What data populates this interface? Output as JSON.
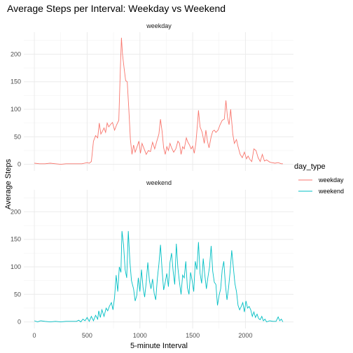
{
  "chart_data": {
    "type": "line",
    "title": "Average Steps per Interval: Weekday vs Weekend",
    "xlabel": "5-minute Interval",
    "ylabel": "Average Steps",
    "xlim": [
      -100,
      2455
    ],
    "ylim": [
      -12,
      240
    ],
    "x_ticks": [
      0,
      500,
      1000,
      1500,
      2000
    ],
    "y_ticks": [
      0,
      50,
      100,
      150,
      200
    ],
    "grid": true,
    "legend": {
      "title": "day_type",
      "placement": "right"
    },
    "panels": [
      "weekday",
      "weekend"
    ],
    "series": [
      {
        "name": "weekday",
        "panel": "weekday",
        "color": "#f8766d",
        "points": [
          [
            0,
            2
          ],
          [
            50,
            1
          ],
          [
            100,
            1
          ],
          [
            150,
            2
          ],
          [
            200,
            1
          ],
          [
            250,
            0
          ],
          [
            300,
            1
          ],
          [
            350,
            1
          ],
          [
            400,
            1
          ],
          [
            450,
            1
          ],
          [
            500,
            3
          ],
          [
            520,
            2
          ],
          [
            540,
            5
          ],
          [
            560,
            42
          ],
          [
            580,
            52
          ],
          [
            600,
            48
          ],
          [
            615,
            75
          ],
          [
            630,
            55
          ],
          [
            645,
            60
          ],
          [
            660,
            66
          ],
          [
            675,
            58
          ],
          [
            690,
            75
          ],
          [
            705,
            68
          ],
          [
            720,
            72
          ],
          [
            740,
            76
          ],
          [
            760,
            62
          ],
          [
            780,
            72
          ],
          [
            800,
            80
          ],
          [
            815,
            175
          ],
          [
            825,
            230
          ],
          [
            835,
            200
          ],
          [
            850,
            175
          ],
          [
            865,
            152
          ],
          [
            880,
            150
          ],
          [
            895,
            100
          ],
          [
            910,
            45
          ],
          [
            925,
            18
          ],
          [
            940,
            35
          ],
          [
            955,
            22
          ],
          [
            970,
            30
          ],
          [
            990,
            42
          ],
          [
            1005,
            20
          ],
          [
            1020,
            38
          ],
          [
            1040,
            28
          ],
          [
            1060,
            18
          ],
          [
            1080,
            25
          ],
          [
            1100,
            23
          ],
          [
            1120,
            40
          ],
          [
            1140,
            28
          ],
          [
            1160,
            42
          ],
          [
            1180,
            55
          ],
          [
            1195,
            82
          ],
          [
            1210,
            60
          ],
          [
            1225,
            30
          ],
          [
            1240,
            18
          ],
          [
            1255,
            32
          ],
          [
            1270,
            25
          ],
          [
            1285,
            38
          ],
          [
            1300,
            30
          ],
          [
            1320,
            22
          ],
          [
            1340,
            28
          ],
          [
            1360,
            42
          ],
          [
            1375,
            38
          ],
          [
            1390,
            18
          ],
          [
            1405,
            32
          ],
          [
            1420,
            28
          ],
          [
            1440,
            48
          ],
          [
            1455,
            40
          ],
          [
            1470,
            35
          ],
          [
            1485,
            28
          ],
          [
            1500,
            33
          ],
          [
            1515,
            20
          ],
          [
            1530,
            38
          ],
          [
            1545,
            72
          ],
          [
            1555,
            98
          ],
          [
            1570,
            68
          ],
          [
            1590,
            58
          ],
          [
            1610,
            38
          ],
          [
            1625,
            62
          ],
          [
            1640,
            42
          ],
          [
            1655,
            30
          ],
          [
            1675,
            50
          ],
          [
            1690,
            60
          ],
          [
            1705,
            62
          ],
          [
            1720,
            58
          ],
          [
            1740,
            62
          ],
          [
            1760,
            72
          ],
          [
            1780,
            80
          ],
          [
            1800,
            82
          ],
          [
            1815,
            116
          ],
          [
            1830,
            85
          ],
          [
            1845,
            72
          ],
          [
            1860,
            100
          ],
          [
            1880,
            55
          ],
          [
            1895,
            38
          ],
          [
            1915,
            45
          ],
          [
            1930,
            32
          ],
          [
            1950,
            18
          ],
          [
            1970,
            12
          ],
          [
            1990,
            22
          ],
          [
            2010,
            10
          ],
          [
            2025,
            15
          ],
          [
            2045,
            8
          ],
          [
            2060,
            5
          ],
          [
            2080,
            28
          ],
          [
            2100,
            25
          ],
          [
            2120,
            12
          ],
          [
            2140,
            5
          ],
          [
            2160,
            18
          ],
          [
            2180,
            6
          ],
          [
            2200,
            8
          ],
          [
            2230,
            4
          ],
          [
            2250,
            3
          ],
          [
            2280,
            2
          ],
          [
            2310,
            3
          ],
          [
            2340,
            1
          ],
          [
            2355,
            1
          ]
        ]
      },
      {
        "name": "weekend",
        "panel": "weekend",
        "color": "#00bfc4",
        "points": [
          [
            0,
            2
          ],
          [
            30,
            0
          ],
          [
            60,
            2
          ],
          [
            100,
            1
          ],
          [
            150,
            0
          ],
          [
            200,
            1
          ],
          [
            250,
            0
          ],
          [
            300,
            1
          ],
          [
            350,
            1
          ],
          [
            400,
            1
          ],
          [
            420,
            3
          ],
          [
            440,
            0
          ],
          [
            460,
            5
          ],
          [
            480,
            2
          ],
          [
            500,
            8
          ],
          [
            520,
            1
          ],
          [
            540,
            10
          ],
          [
            560,
            2
          ],
          [
            580,
            12
          ],
          [
            600,
            5
          ],
          [
            610,
            20
          ],
          [
            625,
            8
          ],
          [
            640,
            22
          ],
          [
            660,
            10
          ],
          [
            680,
            25
          ],
          [
            695,
            20
          ],
          [
            710,
            28
          ],
          [
            730,
            35
          ],
          [
            745,
            22
          ],
          [
            760,
            45
          ],
          [
            775,
            85
          ],
          [
            790,
            55
          ],
          [
            805,
            100
          ],
          [
            820,
            90
          ],
          [
            830,
            165
          ],
          [
            845,
            140
          ],
          [
            860,
            95
          ],
          [
            875,
            80
          ],
          [
            890,
            165
          ],
          [
            905,
            110
          ],
          [
            920,
            75
          ],
          [
            940,
            60
          ],
          [
            955,
            38
          ],
          [
            970,
            48
          ],
          [
            985,
            80
          ],
          [
            1000,
            55
          ],
          [
            1015,
            95
          ],
          [
            1030,
            62
          ],
          [
            1045,
            45
          ],
          [
            1060,
            72
          ],
          [
            1075,
            108
          ],
          [
            1090,
            75
          ],
          [
            1105,
            60
          ],
          [
            1120,
            78
          ],
          [
            1135,
            52
          ],
          [
            1150,
            40
          ],
          [
            1165,
            78
          ],
          [
            1180,
            105
          ],
          [
            1195,
            140
          ],
          [
            1210,
            95
          ],
          [
            1225,
            58
          ],
          [
            1240,
            72
          ],
          [
            1255,
            88
          ],
          [
            1270,
            64
          ],
          [
            1285,
            108
          ],
          [
            1300,
            125
          ],
          [
            1315,
            92
          ],
          [
            1330,
            68
          ],
          [
            1345,
            142
          ],
          [
            1360,
            98
          ],
          [
            1375,
            72
          ],
          [
            1390,
            50
          ],
          [
            1405,
            85
          ],
          [
            1420,
            80
          ],
          [
            1435,
            110
          ],
          [
            1450,
            62
          ],
          [
            1465,
            50
          ],
          [
            1480,
            90
          ],
          [
            1495,
            75
          ],
          [
            1510,
            55
          ],
          [
            1525,
            110
          ],
          [
            1540,
            95
          ],
          [
            1555,
            145
          ],
          [
            1570,
            88
          ],
          [
            1585,
            70
          ],
          [
            1600,
            115
          ],
          [
            1615,
            85
          ],
          [
            1630,
            60
          ],
          [
            1645,
            82
          ],
          [
            1660,
            100
          ],
          [
            1675,
            138
          ],
          [
            1690,
            92
          ],
          [
            1705,
            72
          ],
          [
            1720,
            68
          ],
          [
            1735,
            30
          ],
          [
            1750,
            48
          ],
          [
            1765,
            60
          ],
          [
            1780,
            95
          ],
          [
            1795,
            110
          ],
          [
            1810,
            68
          ],
          [
            1825,
            40
          ],
          [
            1840,
            62
          ],
          [
            1855,
            92
          ],
          [
            1870,
            130
          ],
          [
            1885,
            100
          ],
          [
            1900,
            70
          ],
          [
            1915,
            55
          ],
          [
            1930,
            30
          ],
          [
            1945,
            22
          ],
          [
            1960,
            28
          ],
          [
            1975,
            35
          ],
          [
            1990,
            18
          ],
          [
            2005,
            38
          ],
          [
            2020,
            25
          ],
          [
            2035,
            28
          ],
          [
            2050,
            22
          ],
          [
            2065,
            10
          ],
          [
            2080,
            18
          ],
          [
            2095,
            8
          ],
          [
            2110,
            14
          ],
          [
            2125,
            6
          ],
          [
            2140,
            4
          ],
          [
            2155,
            10
          ],
          [
            2170,
            2
          ],
          [
            2185,
            5
          ],
          [
            2200,
            0
          ],
          [
            2230,
            2
          ],
          [
            2260,
            1
          ],
          [
            2290,
            1
          ],
          [
            2310,
            9
          ],
          [
            2325,
            2
          ],
          [
            2340,
            5
          ],
          [
            2355,
            0
          ]
        ]
      }
    ]
  }
}
